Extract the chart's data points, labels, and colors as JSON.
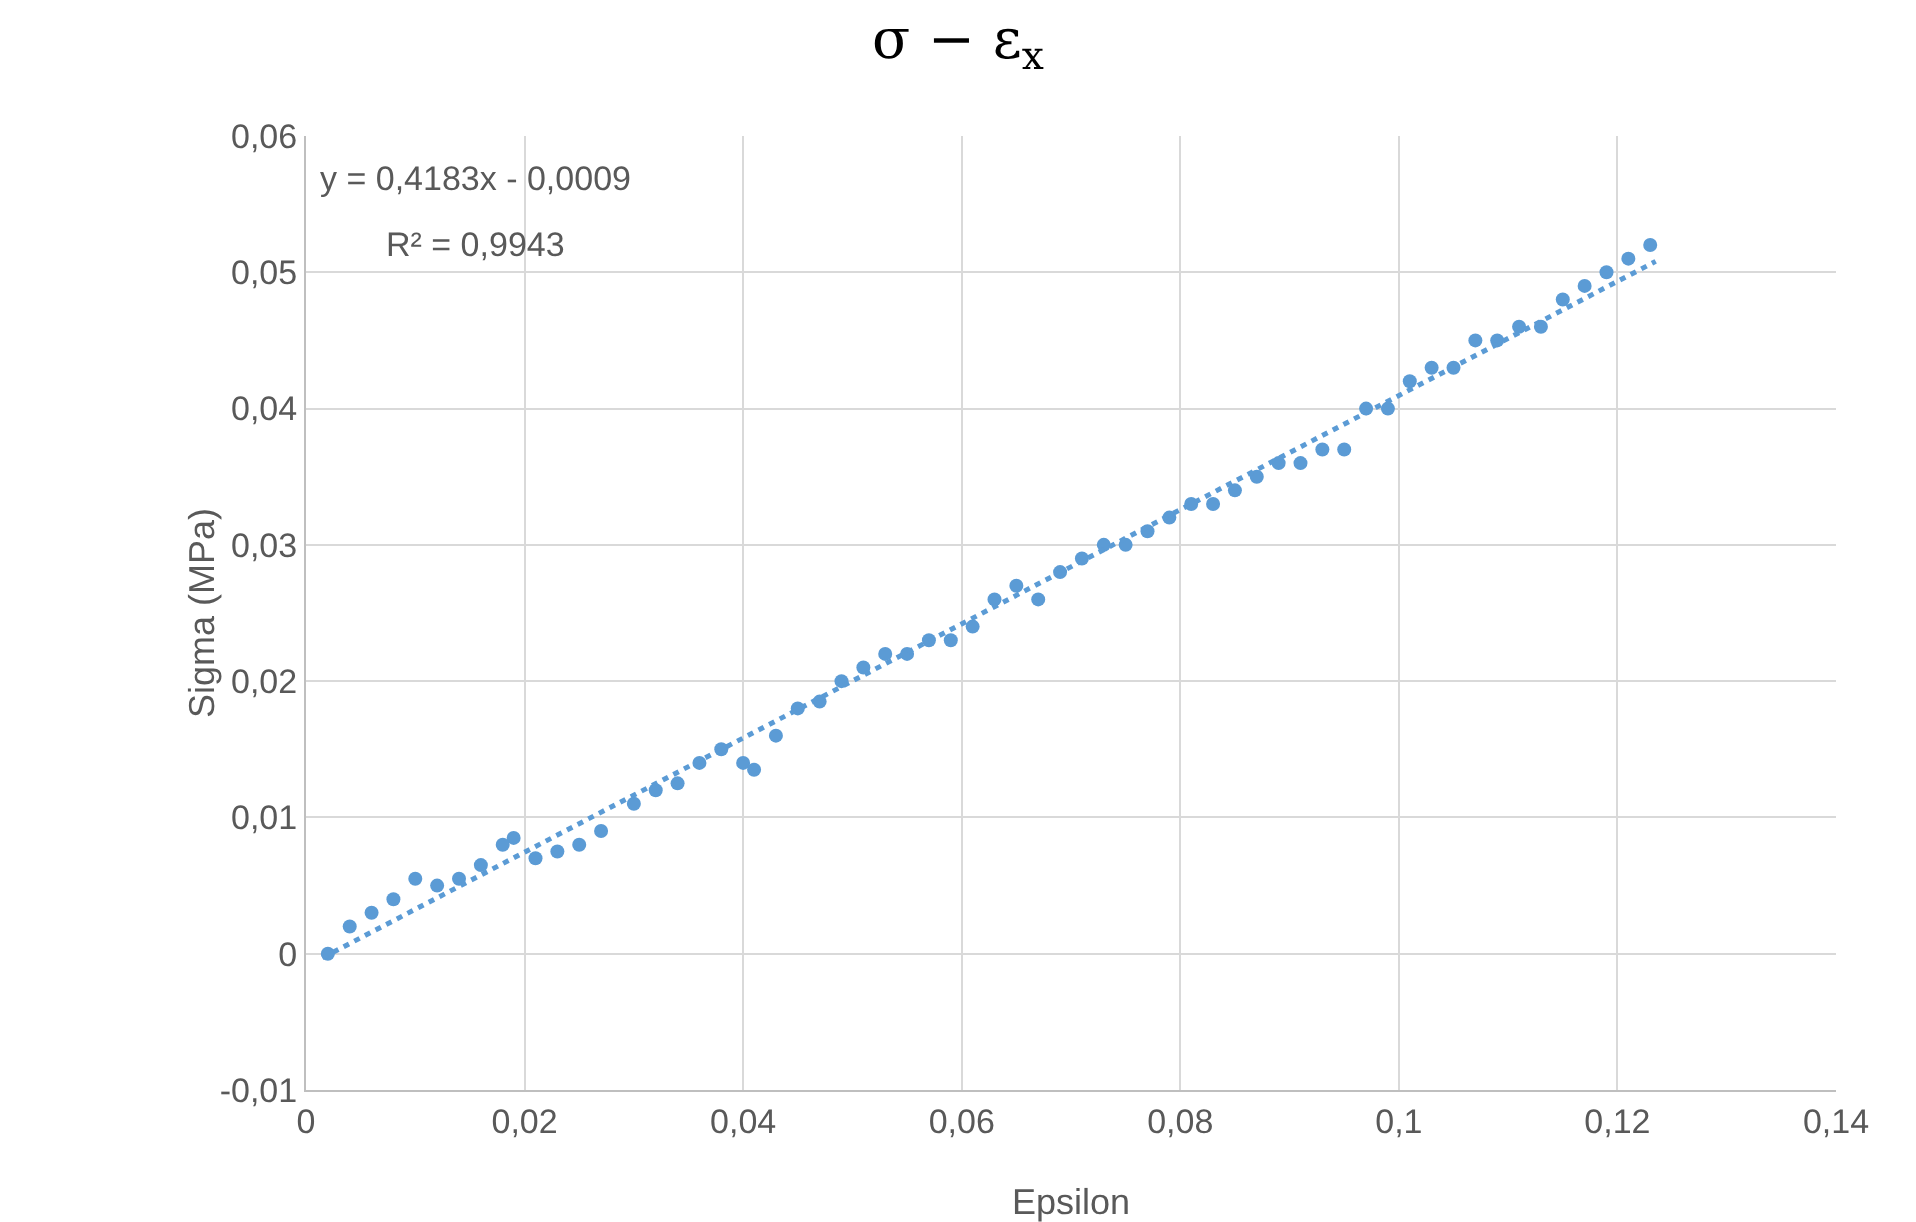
{
  "chart_data": {
    "type": "scatter",
    "title": "σ − ε$_{x}$",
    "xlabel": "Epsilon",
    "ylabel": "Sigma (MPa)",
    "x": [
      0.002,
      0.004,
      0.006,
      0.008,
      0.01,
      0.012,
      0.014,
      0.016,
      0.018,
      0.019,
      0.021,
      0.023,
      0.025,
      0.027,
      0.03,
      0.032,
      0.034,
      0.036,
      0.038,
      0.04,
      0.041,
      0.043,
      0.045,
      0.047,
      0.049,
      0.051,
      0.053,
      0.055,
      0.057,
      0.059,
      0.061,
      0.063,
      0.065,
      0.067,
      0.069,
      0.071,
      0.073,
      0.075,
      0.077,
      0.079,
      0.081,
      0.083,
      0.085,
      0.087,
      0.089,
      0.091,
      0.093,
      0.095,
      0.097,
      0.099,
      0.101,
      0.103,
      0.105,
      0.107,
      0.109,
      0.111,
      0.113,
      0.115,
      0.117,
      0.119,
      0.121,
      0.123
    ],
    "series": [
      {
        "color": "#5b9bd5",
        "marker": "circle",
        "values": [
          0.0,
          0.002,
          0.003,
          0.004,
          0.0055,
          0.005,
          0.0055,
          0.0065,
          0.008,
          0.0085,
          0.007,
          0.0075,
          0.008,
          0.009,
          0.011,
          0.012,
          0.0125,
          0.014,
          0.015,
          0.014,
          0.0135,
          0.016,
          0.018,
          0.0185,
          0.02,
          0.021,
          0.022,
          0.022,
          0.023,
          0.023,
          0.024,
          0.026,
          0.027,
          0.026,
          0.028,
          0.029,
          0.03,
          0.03,
          0.031,
          0.032,
          0.033,
          0.033,
          0.034,
          0.035,
          0.036,
          0.036,
          0.037,
          0.037,
          0.04,
          0.04,
          0.042,
          0.043,
          0.043,
          0.045,
          0.045,
          0.046,
          0.046,
          0.048,
          0.049,
          0.05,
          0.051,
          0.052
        ]
      },
      {
        "type": "line",
        "color": "#5b9bd5",
        "line_style": "dotted",
        "x": [
          0.0015,
          0.1235
        ],
        "values": [
          -0.0003,
          0.0508
        ]
      }
    ],
    "annotations": [
      "y = 0,4183x - 0,0009",
      "R² = 0,9943"
    ],
    "xlim": [
      0,
      0.14
    ],
    "xticks": [
      0,
      {
        "value": 0.02,
        "label": "0,02"
      },
      {
        "value": 0.04,
        "label": "0,04"
      },
      {
        "value": 0.06,
        "label": "0,06"
      },
      {
        "value": 0.08,
        "label": "0,08"
      },
      {
        "value": 0.1,
        "label": "0,1"
      },
      {
        "value": 0.12,
        "label": "0,12"
      },
      {
        "value": 0.14,
        "label": "0,14"
      }
    ],
    "ylim": [
      -0.01,
      0.06
    ],
    "yticks": [
      {
        "value": -0.01,
        "label": "-0,01"
      },
      0,
      {
        "value": 0.01,
        "label": "0,01"
      },
      {
        "value": 0.02,
        "label": "0,02"
      },
      {
        "value": 0.03,
        "label": "0,03"
      },
      {
        "value": 0.04,
        "label": "0,04"
      },
      {
        "value": 0.05,
        "label": "0,05"
      },
      {
        "value": 0.06,
        "label": "0,06"
      }
    ],
    "grid": true
  }
}
